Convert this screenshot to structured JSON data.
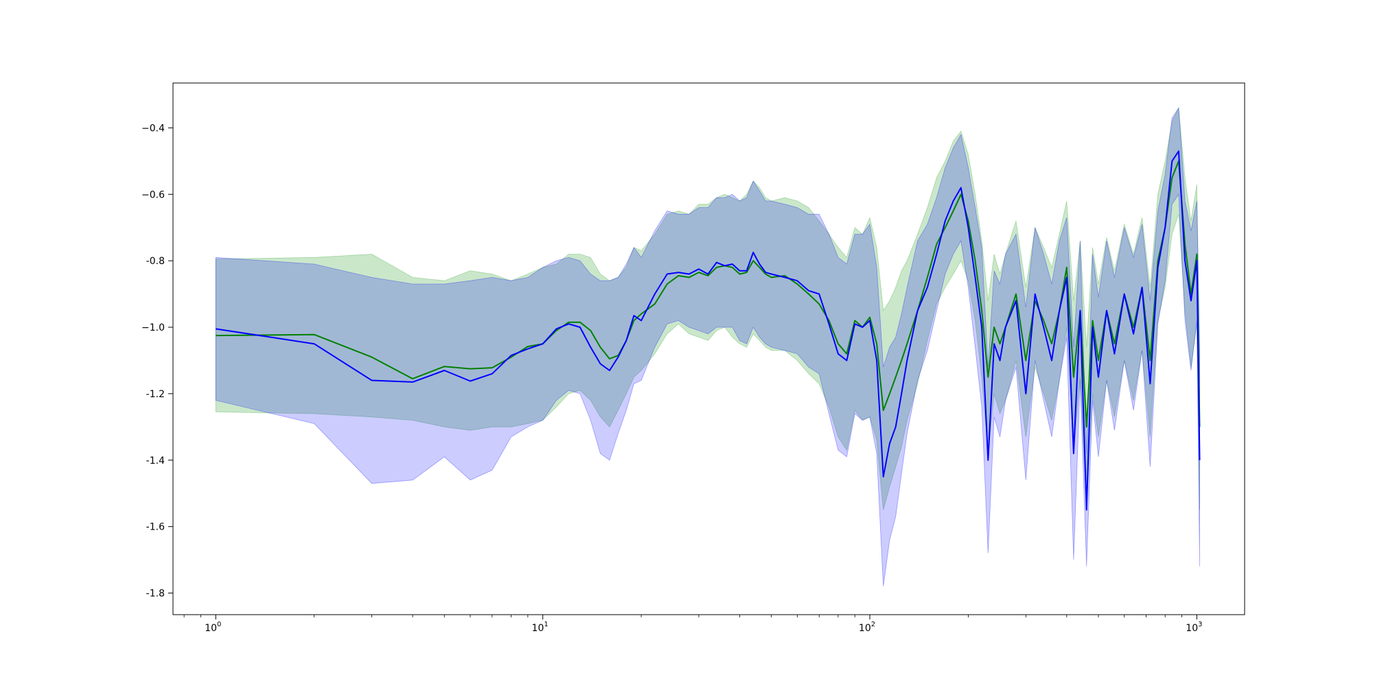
{
  "chart_data": {
    "type": "line",
    "title": "",
    "xlabel": "",
    "ylabel": "",
    "xscale": "log",
    "xlim": [
      0.74,
      1400
    ],
    "ylim": [
      -1.865,
      -0.265
    ],
    "grid": false,
    "legend": "none",
    "x_tick_values": [
      1,
      10,
      100,
      1000
    ],
    "x_tick_labels": [
      {
        "base": "10",
        "exp": "0"
      },
      {
        "base": "10",
        "exp": "1"
      },
      {
        "base": "10",
        "exp": "2"
      },
      {
        "base": "10",
        "exp": "3"
      }
    ],
    "y_tick_values": [
      -0.4,
      -0.6,
      -0.8,
      -1.0,
      -1.2,
      -1.4,
      -1.6,
      -1.8
    ],
    "y_tick_labels": [
      "−0.4",
      "−0.6",
      "-0.8",
      "−1.0",
      "-1.2",
      "-1.4",
      "-1.6",
      "-1.8"
    ],
    "series": [
      {
        "color": "#008000",
        "band_color": "#2ca02c",
        "band_opacity": 0.25,
        "x": [
          1,
          2,
          3,
          4,
          5,
          6,
          7,
          8,
          9,
          10,
          11,
          12,
          13,
          14,
          15,
          16,
          17,
          18,
          19,
          20,
          22,
          24,
          26,
          28,
          30,
          32,
          34,
          36,
          38,
          40,
          42,
          44,
          46,
          48,
          50,
          55,
          60,
          65,
          70,
          75,
          80,
          85,
          90,
          95,
          100,
          105,
          110,
          115,
          120,
          125,
          130,
          140,
          150,
          160,
          170,
          180,
          190,
          200,
          210,
          220,
          230,
          240,
          250,
          260,
          280,
          300,
          320,
          340,
          360,
          380,
          400,
          420,
          440,
          460,
          480,
          500,
          530,
          560,
          600,
          640,
          680,
          720,
          760,
          800,
          840,
          880,
          920,
          960,
          1000,
          1020
        ],
        "y": [
          -1.025,
          -1.022,
          -1.09,
          -1.155,
          -1.118,
          -1.125,
          -1.122,
          -1.09,
          -1.058,
          -1.05,
          -1.01,
          -0.985,
          -0.985,
          -1.01,
          -1.06,
          -1.095,
          -1.085,
          -1.04,
          -0.98,
          -0.96,
          -0.93,
          -0.87,
          -0.845,
          -0.85,
          -0.835,
          -0.845,
          -0.82,
          -0.815,
          -0.82,
          -0.84,
          -0.835,
          -0.8,
          -0.82,
          -0.84,
          -0.85,
          -0.845,
          -0.87,
          -0.9,
          -0.93,
          -0.98,
          -1.05,
          -1.08,
          -0.98,
          -1.0,
          -0.97,
          -1.05,
          -1.25,
          -1.2,
          -1.15,
          -1.1,
          -1.05,
          -0.95,
          -0.85,
          -0.75,
          -0.7,
          -0.65,
          -0.6,
          -0.68,
          -0.8,
          -0.95,
          -1.15,
          -1.0,
          -1.05,
          -1.0,
          -0.9,
          -1.1,
          -0.92,
          -0.98,
          -1.05,
          -0.95,
          -0.82,
          -1.15,
          -0.95,
          -1.3,
          -0.98,
          -1.1,
          -0.95,
          -1.05,
          -0.9,
          -1.0,
          -0.88,
          -1.1,
          -0.8,
          -0.7,
          -0.55,
          -0.5,
          -0.75,
          -0.9,
          -0.78,
          -1.3
        ],
        "y_low": [
          -1.255,
          -1.26,
          -1.27,
          -1.28,
          -1.3,
          -1.31,
          -1.3,
          -1.3,
          -1.29,
          -1.28,
          -1.24,
          -1.2,
          -1.19,
          -1.22,
          -1.27,
          -1.3,
          -1.25,
          -1.2,
          -1.15,
          -1.13,
          -1.08,
          -1.02,
          -0.99,
          -1.02,
          -1.03,
          -1.04,
          -1.01,
          -1.0,
          -1.03,
          -1.05,
          -1.06,
          -1.02,
          -1.04,
          -1.06,
          -1.07,
          -1.07,
          -1.1,
          -1.14,
          -1.17,
          -1.24,
          -1.33,
          -1.37,
          -1.25,
          -1.28,
          -1.27,
          -1.34,
          -1.55,
          -1.48,
          -1.42,
          -1.36,
          -1.28,
          -1.17,
          -1.04,
          -0.93,
          -0.88,
          -0.84,
          -0.8,
          -0.86,
          -0.98,
          -1.15,
          -1.38,
          -1.2,
          -1.26,
          -1.22,
          -1.1,
          -1.33,
          -1.12,
          -1.2,
          -1.28,
          -1.16,
          -1.0,
          -1.38,
          -1.15,
          -1.55,
          -1.2,
          -1.33,
          -1.16,
          -1.27,
          -1.1,
          -1.22,
          -1.07,
          -1.33,
          -0.98,
          -0.88,
          -0.72,
          -0.66,
          -0.95,
          -1.12,
          -0.99,
          -1.55
        ],
        "y_high": [
          -0.795,
          -0.79,
          -0.78,
          -0.85,
          -0.86,
          -0.83,
          -0.84,
          -0.86,
          -0.84,
          -0.82,
          -0.81,
          -0.78,
          -0.78,
          -0.79,
          -0.84,
          -0.86,
          -0.85,
          -0.82,
          -0.76,
          -0.77,
          -0.72,
          -0.66,
          -0.65,
          -0.66,
          -0.63,
          -0.63,
          -0.61,
          -0.6,
          -0.61,
          -0.62,
          -0.6,
          -0.56,
          -0.58,
          -0.61,
          -0.62,
          -0.61,
          -0.62,
          -0.64,
          -0.68,
          -0.72,
          -0.76,
          -0.79,
          -0.7,
          -0.72,
          -0.67,
          -0.76,
          -0.95,
          -0.92,
          -0.88,
          -0.83,
          -0.8,
          -0.72,
          -0.64,
          -0.55,
          -0.5,
          -0.44,
          -0.41,
          -0.48,
          -0.6,
          -0.74,
          -0.92,
          -0.78,
          -0.84,
          -0.78,
          -0.68,
          -0.88,
          -0.7,
          -0.76,
          -0.82,
          -0.72,
          -0.62,
          -0.92,
          -0.74,
          -1.06,
          -0.76,
          -0.87,
          -0.73,
          -0.83,
          -0.69,
          -0.78,
          -0.67,
          -0.88,
          -0.6,
          -0.5,
          -0.38,
          -0.34,
          -0.55,
          -0.68,
          -0.57,
          -1.06
        ]
      },
      {
        "color": "#0000ff",
        "band_color": "#0000ff",
        "band_opacity": 0.2,
        "x": [
          1,
          2,
          3,
          4,
          5,
          6,
          7,
          8,
          9,
          10,
          11,
          12,
          13,
          14,
          15,
          16,
          17,
          18,
          19,
          20,
          22,
          24,
          26,
          28,
          30,
          32,
          34,
          36,
          38,
          40,
          42,
          44,
          46,
          48,
          50,
          55,
          60,
          65,
          70,
          75,
          80,
          85,
          90,
          95,
          100,
          105,
          110,
          115,
          120,
          125,
          130,
          140,
          150,
          160,
          170,
          180,
          190,
          200,
          210,
          220,
          230,
          240,
          250,
          260,
          280,
          300,
          320,
          340,
          360,
          380,
          400,
          420,
          440,
          460,
          480,
          500,
          530,
          560,
          600,
          640,
          680,
          720,
          760,
          800,
          840,
          880,
          920,
          960,
          1000,
          1020
        ],
        "y": [
          -1.005,
          -1.05,
          -1.16,
          -1.165,
          -1.13,
          -1.162,
          -1.14,
          -1.085,
          -1.065,
          -1.05,
          -1.005,
          -0.99,
          -1.0,
          -1.06,
          -1.11,
          -1.13,
          -1.09,
          -1.04,
          -0.965,
          -0.98,
          -0.9,
          -0.84,
          -0.835,
          -0.84,
          -0.825,
          -0.84,
          -0.805,
          -0.815,
          -0.81,
          -0.83,
          -0.83,
          -0.775,
          -0.81,
          -0.835,
          -0.84,
          -0.85,
          -0.86,
          -0.89,
          -0.9,
          -0.99,
          -1.08,
          -1.1,
          -0.99,
          -1.0,
          -0.98,
          -1.1,
          -1.45,
          -1.35,
          -1.3,
          -1.2,
          -1.1,
          -0.95,
          -0.88,
          -0.78,
          -0.68,
          -0.62,
          -0.58,
          -0.7,
          -0.85,
          -1.0,
          -1.4,
          -1.05,
          -1.1,
          -1.0,
          -0.92,
          -1.2,
          -0.9,
          -1.0,
          -1.1,
          -0.95,
          -0.85,
          -1.38,
          -0.95,
          -1.55,
          -1.0,
          -1.15,
          -0.95,
          -1.08,
          -0.9,
          -1.02,
          -0.88,
          -1.17,
          -0.82,
          -0.7,
          -0.5,
          -0.47,
          -0.8,
          -0.92,
          -0.8,
          -1.4
        ],
        "y_low": [
          -1.22,
          -1.29,
          -1.47,
          -1.46,
          -1.39,
          -1.46,
          -1.43,
          -1.33,
          -1.3,
          -1.28,
          -1.22,
          -1.19,
          -1.2,
          -1.28,
          -1.38,
          -1.4,
          -1.32,
          -1.25,
          -1.17,
          -1.16,
          -1.06,
          -0.99,
          -0.98,
          -1.0,
          -1.01,
          -1.02,
          -1.0,
          -1.0,
          -1.0,
          -1.04,
          -1.05,
          -1.0,
          -1.03,
          -1.05,
          -1.06,
          -1.07,
          -1.08,
          -1.12,
          -1.14,
          -1.26,
          -1.37,
          -1.39,
          -1.26,
          -1.28,
          -1.27,
          -1.38,
          -1.78,
          -1.64,
          -1.57,
          -1.44,
          -1.32,
          -1.16,
          -1.07,
          -0.95,
          -0.84,
          -0.78,
          -0.74,
          -0.88,
          -1.06,
          -1.24,
          -1.68,
          -1.27,
          -1.33,
          -1.22,
          -1.12,
          -1.46,
          -1.1,
          -1.22,
          -1.33,
          -1.16,
          -1.03,
          -1.7,
          -1.16,
          -1.72,
          -1.22,
          -1.39,
          -1.16,
          -1.31,
          -1.1,
          -1.25,
          -1.07,
          -1.42,
          -0.99,
          -0.86,
          -0.63,
          -0.6,
          -0.98,
          -1.13,
          -0.98,
          -1.72
        ],
        "y_high": [
          -0.79,
          -0.81,
          -0.85,
          -0.87,
          -0.87,
          -0.86,
          -0.85,
          -0.86,
          -0.85,
          -0.82,
          -0.8,
          -0.79,
          -0.8,
          -0.84,
          -0.86,
          -0.86,
          -0.85,
          -0.81,
          -0.76,
          -0.79,
          -0.71,
          -0.65,
          -0.66,
          -0.66,
          -0.64,
          -0.64,
          -0.61,
          -0.61,
          -0.6,
          -0.62,
          -0.61,
          -0.56,
          -0.59,
          -0.62,
          -0.62,
          -0.63,
          -0.64,
          -0.66,
          -0.66,
          -0.72,
          -0.79,
          -0.81,
          -0.72,
          -0.72,
          -0.69,
          -0.82,
          -1.12,
          -1.06,
          -1.03,
          -0.96,
          -0.88,
          -0.74,
          -0.69,
          -0.61,
          -0.52,
          -0.46,
          -0.42,
          -0.52,
          -0.64,
          -0.76,
          -1.12,
          -0.83,
          -0.87,
          -0.78,
          -0.72,
          -0.94,
          -0.7,
          -0.78,
          -0.87,
          -0.74,
          -0.67,
          -1.06,
          -0.74,
          -1.38,
          -0.78,
          -0.91,
          -0.74,
          -0.85,
          -0.7,
          -0.79,
          -0.69,
          -0.92,
          -0.65,
          -0.54,
          -0.37,
          -0.34,
          -0.62,
          -0.71,
          -0.62,
          -1.08
        ]
      }
    ]
  }
}
